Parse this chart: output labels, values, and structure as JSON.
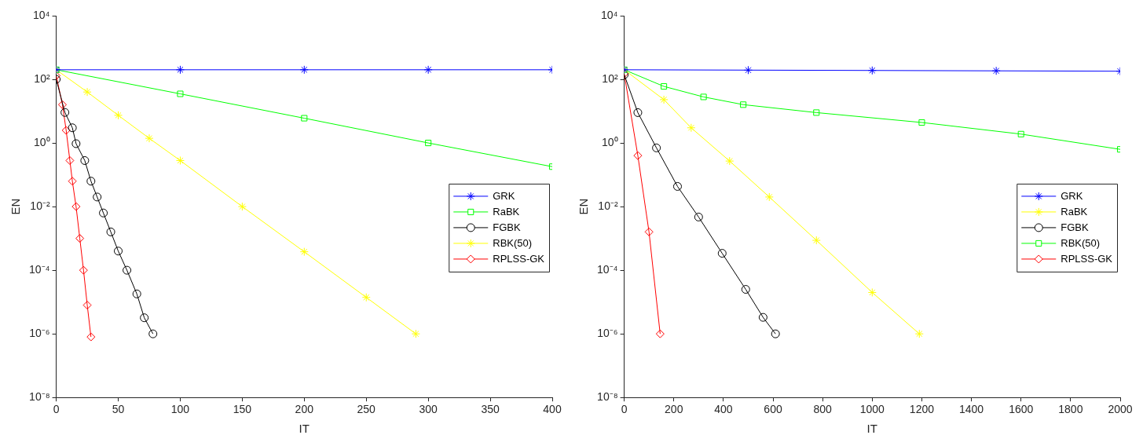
{
  "chart_data": [
    {
      "type": "line",
      "xlabel": "IT",
      "ylabel": "EN",
      "log": "y",
      "grid": false,
      "legend": "right",
      "xlim": [
        0,
        400
      ],
      "xticks": [
        0,
        50,
        100,
        150,
        200,
        250,
        300,
        350,
        400
      ],
      "ylim": [
        1e-08,
        10000
      ],
      "yticks": [
        {
          "value": 1e-08,
          "label": "10⁻⁸"
        },
        {
          "value": 1e-06,
          "label": "10⁻⁶"
        },
        {
          "value": 0.0001,
          "label": "10⁻⁴"
        },
        {
          "value": 0.01,
          "label": "10⁻²"
        },
        {
          "value": 1,
          "label": "10⁰"
        },
        {
          "value": 100,
          "label": "10²"
        },
        {
          "value": 10000,
          "label": "10⁴"
        }
      ],
      "series": [
        {
          "name": "GRK",
          "color": "#0000ff",
          "marker": "cross",
          "x": [
            0,
            100,
            200,
            300,
            400
          ],
          "values": [
            200,
            200,
            200,
            200,
            200
          ]
        },
        {
          "name": "RaBK",
          "color": "#00ff00",
          "marker": "square",
          "x": [
            0,
            100,
            200,
            300,
            400
          ],
          "values": [
            200,
            35,
            6,
            1,
            0.18
          ]
        },
        {
          "name": "FGBK",
          "color": "#000000",
          "marker": "circle",
          "x": [
            0,
            7,
            13,
            16,
            23,
            28,
            33,
            38,
            44,
            50,
            57,
            65,
            71,
            78
          ],
          "values": [
            100,
            9.1,
            3,
            0.95,
            0.28,
            0.063,
            0.02,
            0.0063,
            0.0016,
            0.0004,
            0.0001,
            1.8e-05,
            3.2e-06,
            1e-06
          ]
        },
        {
          "name": "RBK(50)",
          "color": "#ffff00",
          "marker": "cross",
          "x": [
            0,
            25,
            50,
            75,
            100,
            150,
            200,
            250,
            290
          ],
          "values": [
            200,
            40,
            7.4,
            1.4,
            0.28,
            0.01,
            0.00038,
            1.4e-05,
            1e-06
          ]
        },
        {
          "name": "RPLSS-GK",
          "color": "#ff0000",
          "marker": "diamond",
          "x": [
            0,
            5,
            8,
            11,
            13,
            16,
            19,
            22,
            25,
            28
          ],
          "values": [
            130,
            16,
            2.5,
            0.28,
            0.063,
            0.01,
            0.001,
            0.0001,
            8e-06,
            8e-07
          ]
        }
      ]
    },
    {
      "type": "line",
      "xlabel": "IT",
      "ylabel": "EN",
      "log": "y",
      "grid": false,
      "legend": "right",
      "xlim": [
        0,
        2000
      ],
      "xticks": [
        0,
        200,
        400,
        600,
        800,
        1000,
        1200,
        1400,
        1600,
        1800,
        2000
      ],
      "ylim": [
        1e-08,
        10000
      ],
      "yticks": [
        {
          "value": 1e-08,
          "label": "10⁻⁸"
        },
        {
          "value": 1e-06,
          "label": "10⁻⁶"
        },
        {
          "value": 0.0001,
          "label": "10⁻⁴"
        },
        {
          "value": 0.01,
          "label": "10⁻²"
        },
        {
          "value": 1,
          "label": "10⁰"
        },
        {
          "value": 100,
          "label": "10²"
        },
        {
          "value": 10000,
          "label": "10⁴"
        }
      ],
      "series": [
        {
          "name": "GRK",
          "color": "#0000ff",
          "marker": "cross",
          "x": [
            0,
            500,
            1000,
            1500,
            2000
          ],
          "values": [
            200,
            195,
            190,
            185,
            180
          ]
        },
        {
          "name": "RaBK",
          "color": "#ffff00",
          "marker": "cross",
          "x": [
            0,
            160,
            270,
            425,
            585,
            775,
            1000,
            1190
          ],
          "values": [
            200,
            23,
            3,
            0.27,
            0.02,
            0.00087,
            2e-05,
            1e-06
          ]
        },
        {
          "name": "FGBK",
          "color": "#000000",
          "marker": "circle",
          "x": [
            0,
            55,
            130,
            215,
            300,
            395,
            490,
            560,
            610
          ],
          "values": [
            140,
            9,
            0.7,
            0.043,
            0.0047,
            0.00034,
            2.5e-05,
            3.3e-06,
            1e-06
          ]
        },
        {
          "name": "RBK(50)",
          "color": "#00ff00",
          "marker": "square",
          "x": [
            0,
            160,
            320,
            480,
            775,
            1200,
            1600,
            2000
          ],
          "values": [
            200,
            60,
            28,
            16,
            9,
            4.4,
            1.9,
            0.63
          ]
        },
        {
          "name": "RPLSS-GK",
          "color": "#ff0000",
          "marker": "diamond",
          "x": [
            0,
            55,
            100,
            145
          ],
          "values": [
            150,
            0.4,
            0.0016,
            1e-06
          ]
        }
      ]
    }
  ]
}
